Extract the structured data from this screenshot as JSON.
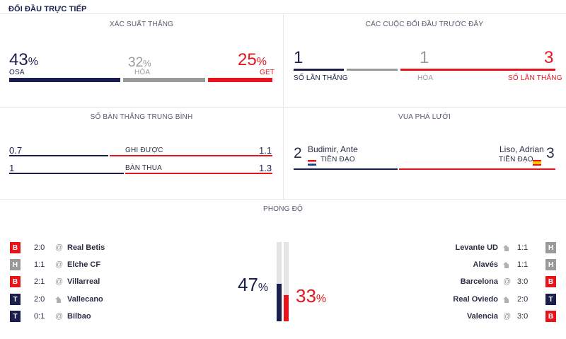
{
  "title": "ĐỐI ĐẦU TRỰC TIẾP",
  "win_prob": {
    "title": "XÁC SUẤT THẮNG",
    "home": {
      "value": "43",
      "pct": "%",
      "label": "OSA",
      "fraction": 0.43
    },
    "draw": {
      "value": "32",
      "pct": "%",
      "label": "HÒA",
      "fraction": 0.32
    },
    "away": {
      "value": "25",
      "pct": "%",
      "label": "GET",
      "fraction": 0.25
    }
  },
  "h2h": {
    "title": "CÁC CUỘC ĐỐI ĐẦU TRƯỚC ĐÂY",
    "home": {
      "value": "1",
      "label": "SỐ LẦN THẮNG"
    },
    "draw": {
      "value": "1",
      "label": "HÒA"
    },
    "away": {
      "value": "3",
      "label": "SỐ LẦN THẮNG"
    }
  },
  "avg_goals": {
    "title": "SỐ BÀN THẮNG TRUNG BÌNH",
    "scored": {
      "label": "GHI ĐƯỢC",
      "home": "0.7",
      "away": "1.1"
    },
    "conceded": {
      "label": "BÀN THUA",
      "home": "1",
      "away": "1.3"
    }
  },
  "top_scorer": {
    "title": "VUA PHÁ LƯỚI",
    "home": {
      "goals": "2",
      "name": "Budimir, Ante",
      "position": "TIỀN ĐẠO",
      "flag": "croatia-flag"
    },
    "away": {
      "goals": "3",
      "name": "Liso, Adrian",
      "position": "TIỀN ĐẠO",
      "flag": "spain-flag"
    }
  },
  "form": {
    "title": "PHONG ĐỘ",
    "home_pct": {
      "value": "47",
      "pct": "%",
      "fraction": 0.47
    },
    "away_pct": {
      "value": "33",
      "pct": "%",
      "fraction": 0.33
    },
    "home": [
      {
        "result": "B",
        "score": "2:0",
        "venue": "away",
        "team": "Real Betis"
      },
      {
        "result": "H",
        "score": "1:1",
        "venue": "away",
        "team": "Elche CF"
      },
      {
        "result": "B",
        "score": "2:1",
        "venue": "away",
        "team": "Villarreal"
      },
      {
        "result": "T",
        "score": "2:0",
        "venue": "home",
        "team": "Vallecano"
      },
      {
        "result": "T",
        "score": "0:1",
        "venue": "away",
        "team": "Bilbao"
      }
    ],
    "away": [
      {
        "team": "Levante UD",
        "venue": "home",
        "score": "1:1",
        "result": "H"
      },
      {
        "team": "Alavés",
        "venue": "home",
        "score": "1:1",
        "result": "H"
      },
      {
        "team": "Barcelona",
        "venue": "away",
        "score": "3:0",
        "result": "B"
      },
      {
        "team": "Real Oviedo",
        "venue": "home",
        "score": "2:0",
        "result": "T"
      },
      {
        "team": "Valencia",
        "venue": "away",
        "score": "3:0",
        "result": "B"
      }
    ]
  },
  "colors": {
    "navy": "#1a1f4d",
    "red": "#e8141c",
    "grey": "#9a9a9a"
  }
}
